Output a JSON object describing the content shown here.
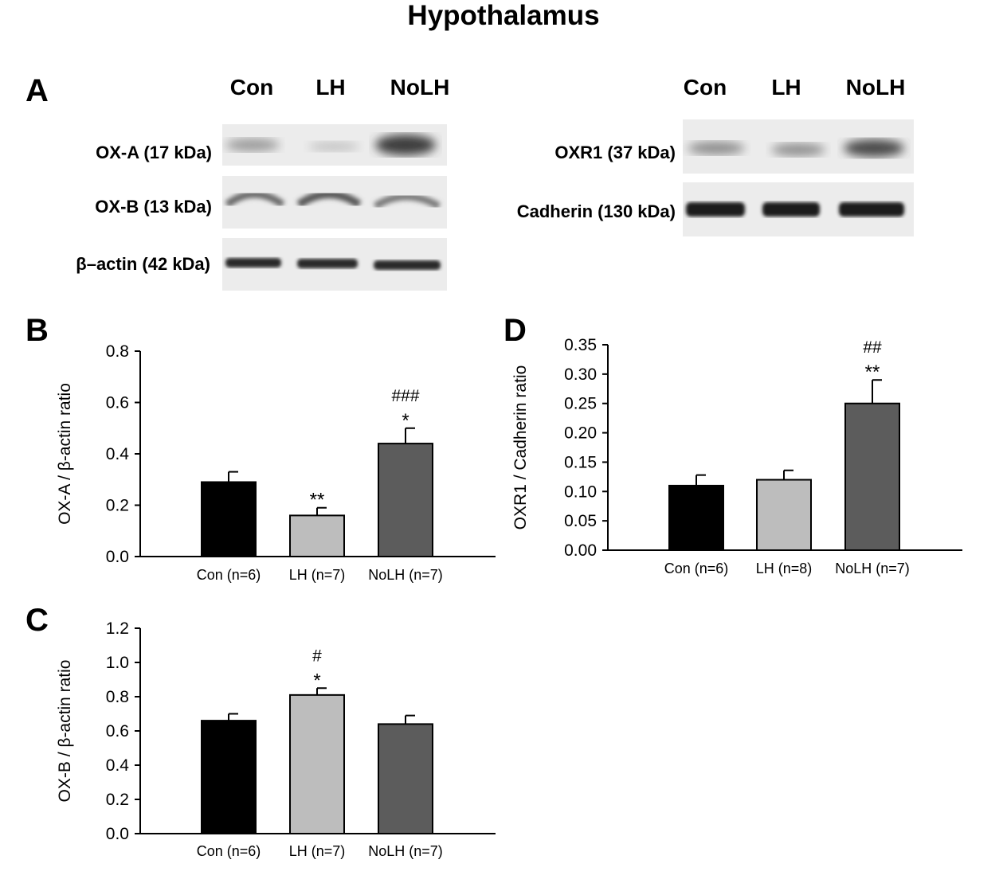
{
  "figure_title": "Hypothalamus",
  "panel_a": {
    "letter": "A",
    "left_lanes": [
      "Con",
      "LH",
      "NoLH"
    ],
    "right_lanes": [
      "Con",
      "LH",
      "NoLH"
    ],
    "blots_left": [
      {
        "label": "OX-A (17 kDa)"
      },
      {
        "label": "OX-B (13 kDa)"
      },
      {
        "label": "β–actin (42 kDa)"
      }
    ],
    "blots_right": [
      {
        "label": "OXR1 (37 kDa)"
      },
      {
        "label": "Cadherin (130 kDa)"
      }
    ]
  },
  "chart_data": [
    {
      "panel": "B",
      "type": "bar",
      "categories": [
        "Con (n=6)",
        "LH (n=7)",
        "NoLH (n=7)"
      ],
      "values": [
        0.29,
        0.16,
        0.44
      ],
      "errors": [
        0.04,
        0.03,
        0.06
      ],
      "annotations": [
        "",
        "**",
        "*\n###"
      ],
      "ylabel": "OX-A / β-actin ratio",
      "ylim": [
        0,
        0.8
      ],
      "yticks": [
        "0.0",
        "0.2",
        "0.4",
        "0.6",
        "0.8"
      ],
      "colors": [
        "#000000",
        "#bdbdbd",
        "#5c5c5c"
      ],
      "grid": false
    },
    {
      "panel": "C",
      "type": "bar",
      "categories": [
        "Con (n=6)",
        "LH (n=7)",
        "NoLH (n=7)"
      ],
      "values": [
        0.66,
        0.81,
        0.64
      ],
      "errors": [
        0.04,
        0.04,
        0.05
      ],
      "annotations": [
        "",
        "*\n#",
        ""
      ],
      "ylabel": "OX-B / β-actin ratio",
      "ylim": [
        0,
        1.2
      ],
      "yticks": [
        "0.0",
        "0.2",
        "0.4",
        "0.6",
        "0.8",
        "1.0",
        "1.2"
      ],
      "colors": [
        "#000000",
        "#bdbdbd",
        "#5c5c5c"
      ],
      "grid": false
    },
    {
      "panel": "D",
      "type": "bar",
      "categories": [
        "Con (n=6)",
        "LH (n=8)",
        "NoLH (n=7)"
      ],
      "values": [
        0.11,
        0.12,
        0.25
      ],
      "errors": [
        0.018,
        0.016,
        0.04
      ],
      "annotations": [
        "",
        "",
        "**\n##"
      ],
      "ylabel": "OXR1 / Cadherin ratio",
      "ylim": [
        0,
        0.35
      ],
      "yticks": [
        "0.00",
        "0.05",
        "0.10",
        "0.15",
        "0.20",
        "0.25",
        "0.30",
        "0.35"
      ],
      "colors": [
        "#000000",
        "#bdbdbd",
        "#5c5c5c"
      ],
      "grid": false
    }
  ]
}
